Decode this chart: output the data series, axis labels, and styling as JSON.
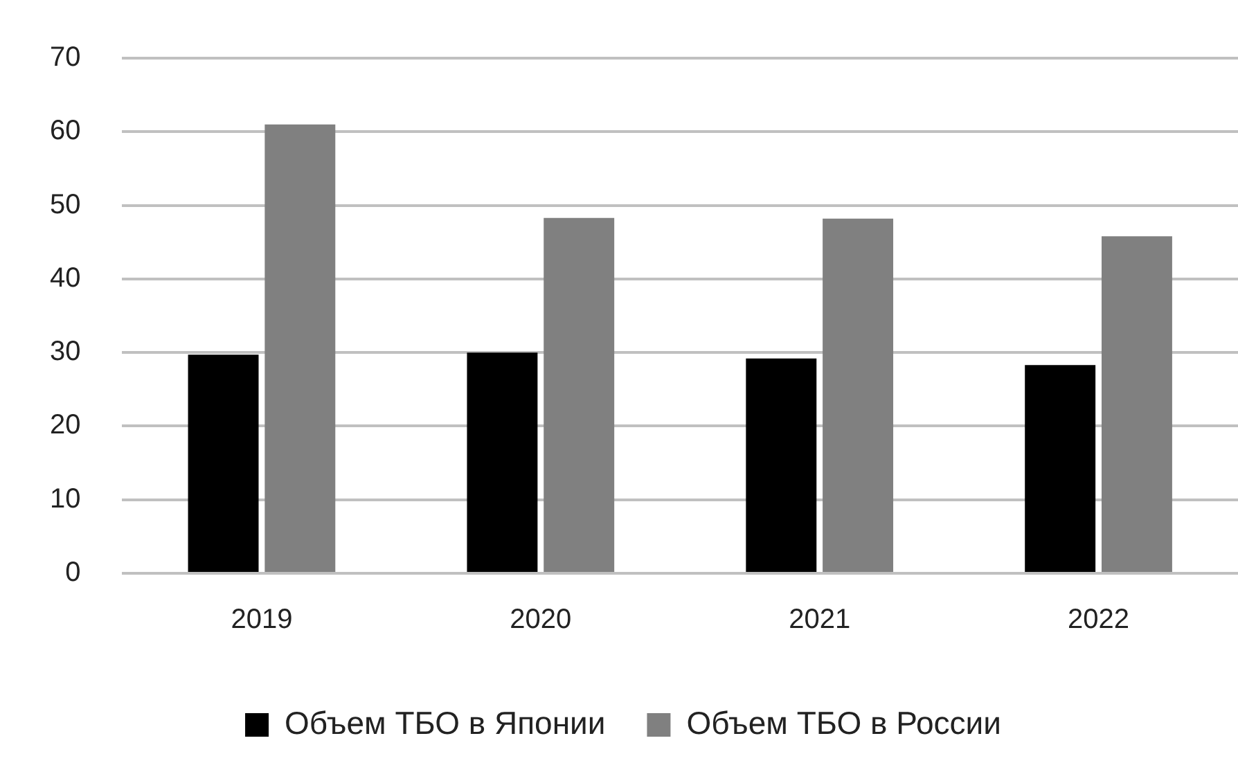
{
  "chart_data": {
    "type": "bar",
    "categories": [
      "2019",
      "2020",
      "2021",
      "2022"
    ],
    "series": [
      {
        "name": "Объем ТБО в Японии",
        "color": "#000000",
        "values": [
          29.7,
          30.0,
          29.2,
          28.3
        ]
      },
      {
        "name": "Объем ТБО в России",
        "color": "#808080",
        "values": [
          61.0,
          48.3,
          48.2,
          45.8
        ]
      }
    ],
    "ylim": [
      0,
      70
    ],
    "yticks": [
      0,
      10,
      20,
      30,
      40,
      50,
      60,
      70
    ],
    "grid": "y",
    "legend": "bottom"
  }
}
